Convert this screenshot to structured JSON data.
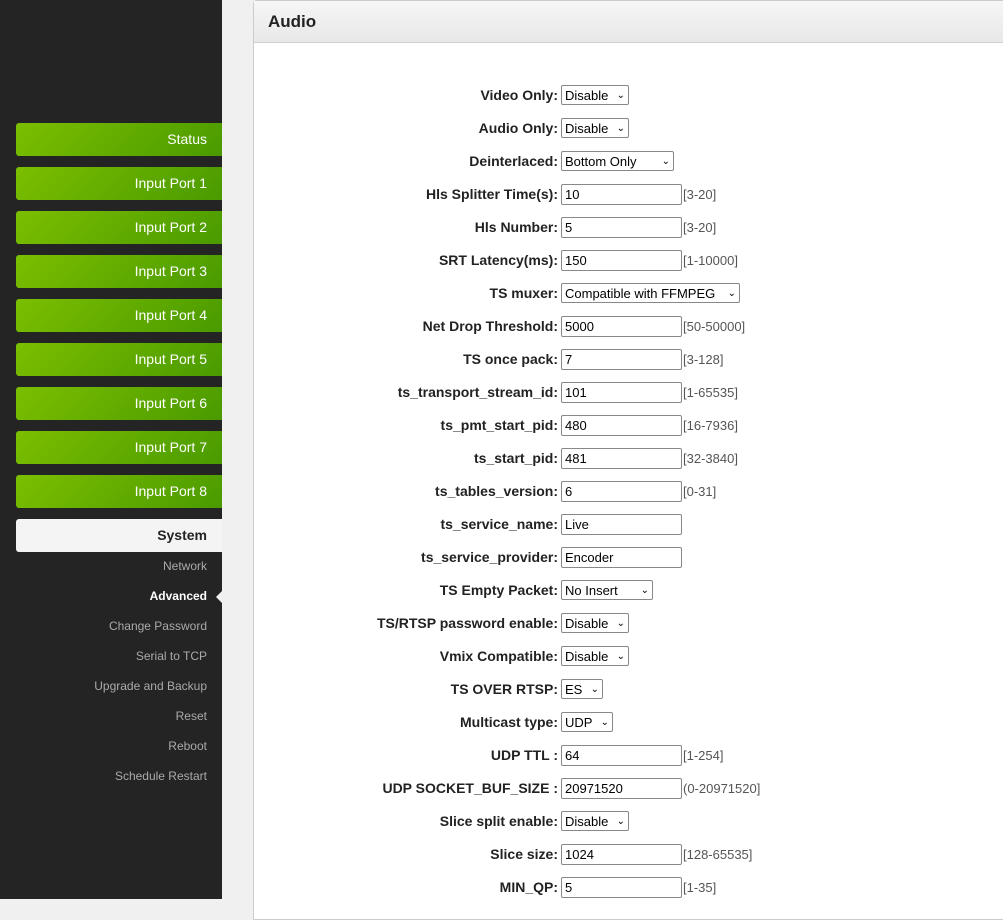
{
  "sidebar": {
    "buttons": [
      "Status",
      "Input Port 1",
      "Input Port 2",
      "Input Port 3",
      "Input Port 4",
      "Input Port 5",
      "Input Port 6",
      "Input Port 7",
      "Input Port 8"
    ],
    "system": "System",
    "subitems": [
      "Network",
      "Advanced",
      "Change Password",
      "Serial to TCP",
      "Upgrade and Backup",
      "Reset",
      "Reboot",
      "Schedule Restart"
    ],
    "active": "Advanced"
  },
  "panel": {
    "title": "Audio"
  },
  "fields": [
    {
      "label": "Video Only:",
      "type": "select",
      "value": "Disable",
      "w": 68
    },
    {
      "label": "Audio Only:",
      "type": "select",
      "value": "Disable",
      "w": 68
    },
    {
      "label": "Deinterlaced:",
      "type": "select",
      "value": "Bottom Only",
      "w": 113
    },
    {
      "label": "Hls Splitter Time(s):",
      "type": "input",
      "value": "10",
      "hint": "[3-20]"
    },
    {
      "label": "Hls Number:",
      "type": "input",
      "value": "5",
      "hint": "[3-20]"
    },
    {
      "label": "SRT Latency(ms):",
      "type": "input",
      "value": "150",
      "hint": "[1-10000]"
    },
    {
      "label": "TS muxer:",
      "type": "select",
      "value": "Compatible with FFMPEG",
      "w": 179
    },
    {
      "label": "Net Drop Threshold:",
      "type": "input",
      "value": "5000",
      "hint": "[50-50000]"
    },
    {
      "label": "TS once pack:",
      "type": "input",
      "value": "7",
      "hint": "[3-128]"
    },
    {
      "label": "ts_transport_stream_id:",
      "type": "input",
      "value": "101",
      "hint": "[1-65535]"
    },
    {
      "label": "ts_pmt_start_pid:",
      "type": "input",
      "value": "480",
      "hint": "[16-7936]"
    },
    {
      "label": "ts_start_pid:",
      "type": "input",
      "value": "481",
      "hint": "[32-3840]"
    },
    {
      "label": "ts_tables_version:",
      "type": "input",
      "value": "6",
      "hint": "[0-31]"
    },
    {
      "label": "ts_service_name:",
      "type": "input",
      "value": "Live"
    },
    {
      "label": "ts_service_provider:",
      "type": "input",
      "value": "Encoder"
    },
    {
      "label": "TS Empty Packet:",
      "type": "select",
      "value": "No Insert",
      "w": 92
    },
    {
      "label": "TS/RTSP password enable:",
      "type": "select",
      "value": "Disable",
      "w": 68
    },
    {
      "label": "Vmix Compatible:",
      "type": "select",
      "value": "Disable",
      "w": 68
    },
    {
      "label": "TS OVER RTSP:",
      "type": "select",
      "value": "ES",
      "w": 42
    },
    {
      "label": "Multicast type:",
      "type": "select",
      "value": "UDP",
      "w": 52
    },
    {
      "label": "UDP TTL :",
      "type": "input",
      "value": "64",
      "hint": "[1-254]"
    },
    {
      "label": "UDP SOCKET_BUF_SIZE :",
      "type": "input",
      "value": "20971520",
      "hint": "(0-20971520]"
    },
    {
      "label": "Slice split enable:",
      "type": "select",
      "value": "Disable",
      "w": 68
    },
    {
      "label": "Slice size:",
      "type": "input",
      "value": "1024",
      "hint": "[128-65535]"
    },
    {
      "label": "MIN_QP:",
      "type": "input",
      "value": "5",
      "hint": "[1-35]"
    }
  ]
}
